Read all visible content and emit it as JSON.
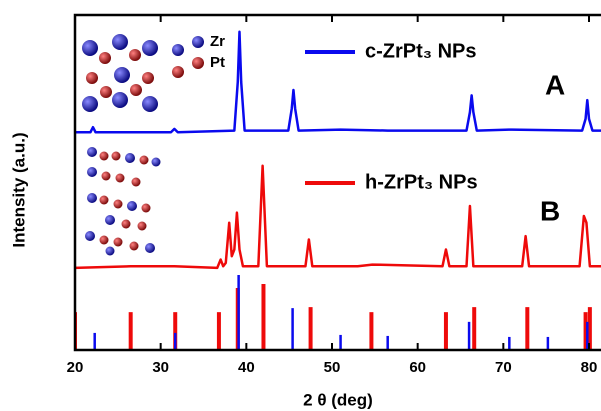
{
  "chart_data": {
    "type": "line",
    "x_label": "2 θ (deg)",
    "y_label": "Intensity (a.u.)",
    "xlim": [
      20,
      81.4
    ],
    "ylim": [
      0,
      100
    ],
    "xticks": [
      20,
      30,
      40,
      50,
      60,
      70,
      80
    ],
    "annotations": [
      "A",
      "B",
      "Zr",
      "Pt"
    ],
    "series": [
      {
        "name": "c-ZrPt₃ NPs",
        "type": "line",
        "color": "#0a0aee",
        "x": [
          20,
          21.8,
          22.1,
          22.4,
          25,
          31.2,
          31.6,
          32.0,
          38.6,
          39.0,
          39.2,
          39.4,
          39.8,
          44.9,
          45.3,
          45.5,
          45.7,
          46.1,
          51,
          56.5,
          65.7,
          66.1,
          66.3,
          66.5,
          66.9,
          71,
          79.2,
          79.6,
          79.8,
          80.0,
          80.4,
          81.4
        ],
        "values": [
          65,
          65,
          66.5,
          65,
          65,
          65,
          66,
          65,
          65.5,
          80,
          95,
          80,
          65.5,
          65.5,
          72,
          77.6,
          72,
          65.5,
          65.8,
          65.5,
          65.5,
          71,
          76,
          71,
          65.5,
          65.8,
          65.5,
          69,
          74.6,
          69,
          65.5,
          65.5
        ]
      },
      {
        "name": "h-ZrPt₃ NPs",
        "type": "line",
        "color": "#ee0a0a",
        "x": [
          20,
          26.5,
          31.6,
          36.6,
          37.0,
          37.3,
          37.6,
          38.0,
          38.3,
          38.6,
          38.9,
          39.2,
          39.6,
          41.4,
          41.9,
          42.4,
          46.9,
          47.3,
          47.7,
          53,
          54.7,
          62.9,
          63.3,
          63.7,
          65.7,
          66.1,
          66.5,
          72.2,
          72.6,
          73.0,
          78.9,
          79.4,
          79.7,
          80.1,
          81.4
        ],
        "values": [
          24.5,
          25,
          25,
          24.5,
          27,
          25,
          26,
          38,
          28,
          30,
          41,
          30,
          25,
          25,
          55,
          25,
          25,
          33,
          25,
          25,
          25.5,
          25,
          30,
          25,
          25,
          43,
          25,
          25,
          34,
          25,
          25,
          40,
          38,
          25,
          25
        ]
      },
      {
        "type": "stem",
        "color": "#ee0a0a",
        "x": [
          20.0,
          26.5,
          31.7,
          36.8,
          39.0,
          42.0,
          47.5,
          54.6,
          63.3,
          66.6,
          72.8,
          79.6,
          80.1
        ],
        "values": [
          11.3,
          11.3,
          11.3,
          11.3,
          18.5,
          19.7,
          12.8,
          11.3,
          11.3,
          12.8,
          12.8,
          11.3,
          12.8
        ]
      },
      {
        "type": "stem",
        "color": "#0a0aee",
        "x": [
          22.3,
          31.7,
          39.1,
          45.4,
          51.0,
          56.5,
          66.0,
          70.7,
          75.2,
          79.8
        ],
        "values": [
          5.1,
          5.1,
          22.4,
          12.5,
          4.5,
          4.2,
          8.4,
          3.9,
          3.9,
          8.4
        ]
      }
    ]
  }
}
